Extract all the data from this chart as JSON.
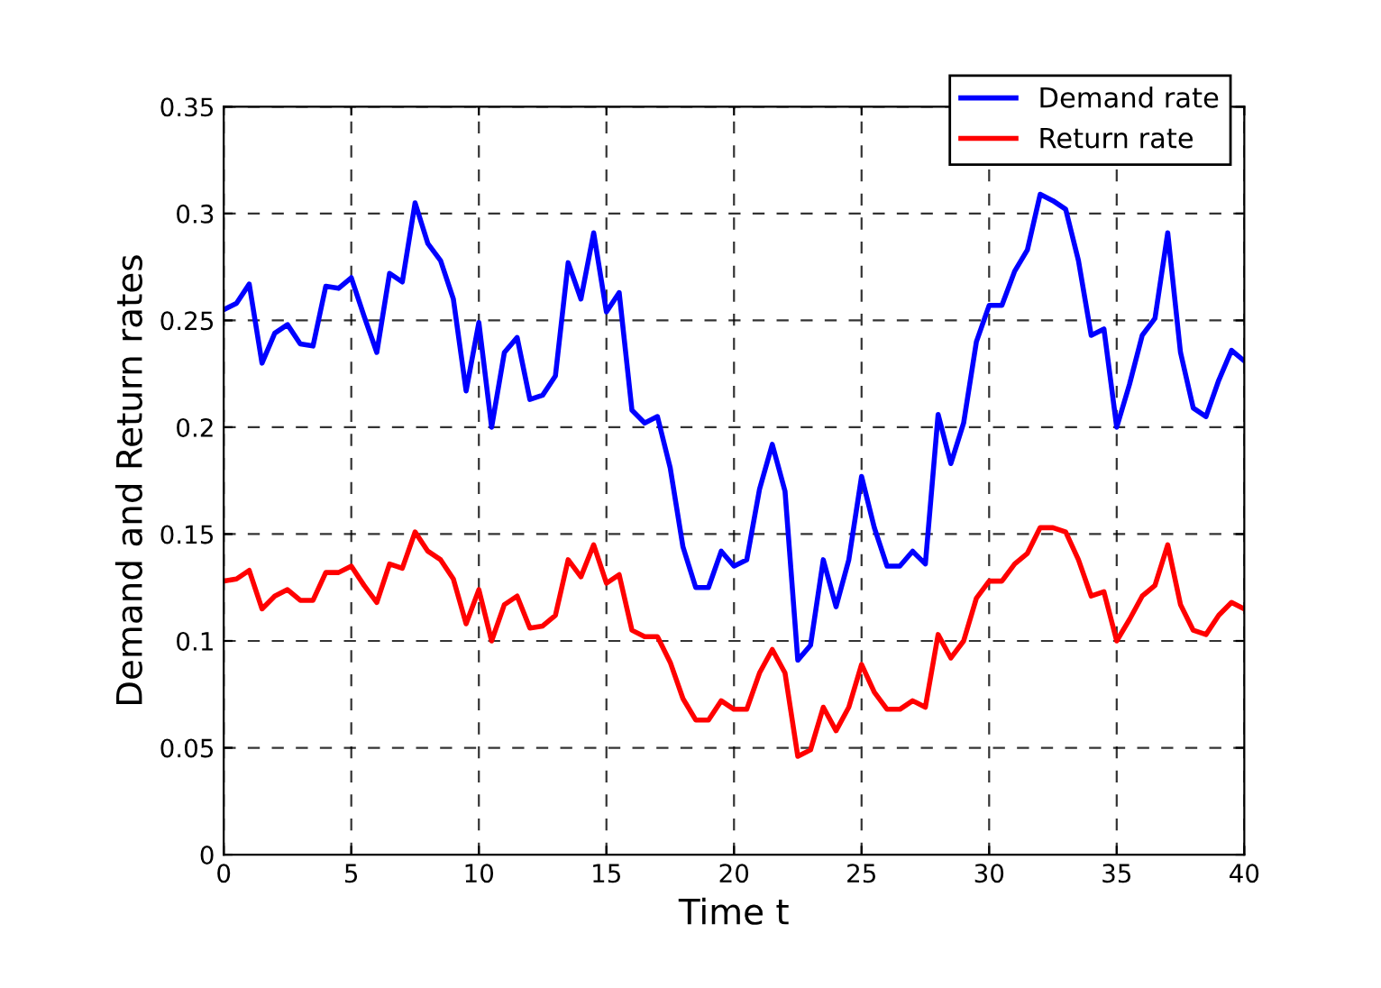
{
  "chart_data": {
    "type": "line",
    "xlabel": "Time t",
    "ylabel": "Demand and Return rates",
    "x": [
      0,
      0.5,
      1,
      1.5,
      2,
      2.5,
      3,
      3.5,
      4,
      4.5,
      5,
      5.5,
      6,
      6.5,
      7,
      7.5,
      8,
      8.5,
      9,
      9.5,
      10,
      10.5,
      11,
      11.5,
      12,
      12.5,
      13,
      13.5,
      14,
      14.5,
      15,
      15.5,
      16,
      16.5,
      17,
      17.5,
      18,
      18.5,
      19,
      19.5,
      20,
      20.5,
      21,
      21.5,
      22,
      22.5,
      23,
      23.5,
      24,
      24.5,
      25,
      25.5,
      26,
      26.5,
      27,
      27.5,
      28,
      28.5,
      29,
      29.5,
      30,
      30.5,
      31,
      31.5,
      32,
      32.5,
      33,
      33.5,
      34,
      34.5,
      35,
      35.5,
      36,
      36.5,
      37,
      37.5,
      38,
      38.5,
      39,
      39.5,
      40
    ],
    "series": [
      {
        "name": "Demand rate",
        "color": "#0000ff",
        "values": [
          0.255,
          0.258,
          0.267,
          0.23,
          0.244,
          0.248,
          0.239,
          0.238,
          0.266,
          0.265,
          0.27,
          0.252,
          0.235,
          0.272,
          0.268,
          0.305,
          0.286,
          0.278,
          0.26,
          0.217,
          0.249,
          0.2,
          0.235,
          0.242,
          0.213,
          0.215,
          0.224,
          0.277,
          0.26,
          0.291,
          0.254,
          0.263,
          0.208,
          0.202,
          0.205,
          0.181,
          0.144,
          0.125,
          0.125,
          0.142,
          0.135,
          0.138,
          0.171,
          0.192,
          0.17,
          0.091,
          0.098,
          0.138,
          0.116,
          0.138,
          0.177,
          0.153,
          0.135,
          0.135,
          0.142,
          0.136,
          0.206,
          0.183,
          0.202,
          0.24,
          0.257,
          0.257,
          0.273,
          0.283,
          0.309,
          0.306,
          0.302,
          0.278,
          0.243,
          0.246,
          0.2,
          0.22,
          0.243,
          0.251,
          0.291,
          0.235,
          0.209,
          0.205,
          0.222,
          0.236,
          0.231
        ]
      },
      {
        "name": "Return rate",
        "color": "#ff0000",
        "values": [
          0.128,
          0.129,
          0.133,
          0.115,
          0.121,
          0.124,
          0.119,
          0.119,
          0.132,
          0.132,
          0.135,
          0.126,
          0.118,
          0.136,
          0.134,
          0.151,
          0.142,
          0.138,
          0.129,
          0.108,
          0.124,
          0.1,
          0.117,
          0.121,
          0.106,
          0.107,
          0.112,
          0.138,
          0.13,
          0.145,
          0.127,
          0.131,
          0.105,
          0.102,
          0.102,
          0.09,
          0.073,
          0.063,
          0.063,
          0.072,
          0.068,
          0.068,
          0.085,
          0.096,
          0.085,
          0.046,
          0.049,
          0.069,
          0.058,
          0.069,
          0.089,
          0.076,
          0.068,
          0.068,
          0.072,
          0.069,
          0.103,
          0.092,
          0.1,
          0.12,
          0.128,
          0.128,
          0.136,
          0.141,
          0.153,
          0.153,
          0.151,
          0.138,
          0.121,
          0.123,
          0.1,
          0.11,
          0.121,
          0.126,
          0.145,
          0.117,
          0.105,
          0.103,
          0.112,
          0.118,
          0.115
        ]
      }
    ],
    "xlim": [
      0,
      40
    ],
    "xticks": [
      0,
      5,
      10,
      15,
      20,
      25,
      30,
      35,
      40
    ],
    "ylim": [
      0,
      0.35
    ],
    "yticks": [
      {
        "value": 0,
        "label": "0"
      },
      {
        "value": 0.05,
        "label": "0.05"
      },
      {
        "value": 0.1,
        "label": "0.1"
      },
      {
        "value": 0.15,
        "label": "0.15"
      },
      {
        "value": 0.2,
        "label": "0.2"
      },
      {
        "value": 0.25,
        "label": "0.25"
      },
      {
        "value": 0.3,
        "label": "0.3"
      },
      {
        "value": 0.35,
        "label": "0.35"
      }
    ],
    "grid": true,
    "legend": "top right",
    "line_style": "solid",
    "marker": "none"
  }
}
